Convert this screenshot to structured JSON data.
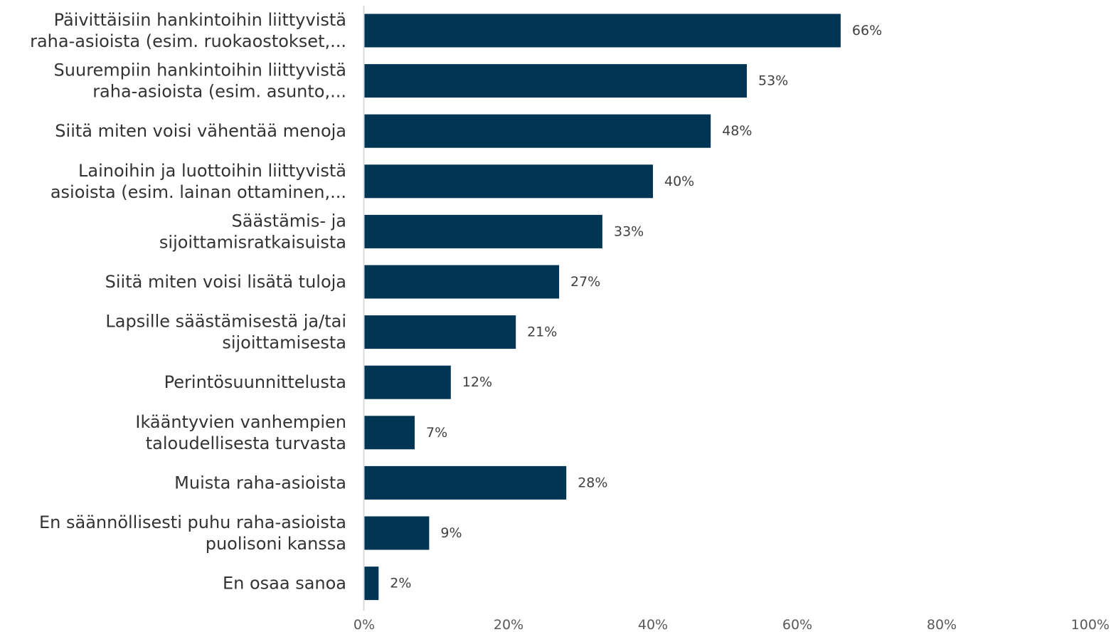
{
  "chart_data": {
    "type": "bar",
    "orientation": "horizontal",
    "title": "",
    "xlabel": "",
    "ylabel": "",
    "categories": [
      [
        "Päivittäisiin hankintoihin liittyvistä",
        "raha-asioista (esim. ruokaostokset,..."
      ],
      [
        "Suurempiin hankintoihin liittyvistä",
        "raha-asioista (esim. asunto,..."
      ],
      [
        "Siitä miten voisi vähentää menoja"
      ],
      [
        "Lainoihin ja luottoihin liittyvistä",
        "asioista (esim. lainan ottaminen,..."
      ],
      [
        "Säästämis- ja",
        "sijoittamisratkaisuista"
      ],
      [
        "Siitä miten voisi lisätä tuloja"
      ],
      [
        "Lapsille säästämisestä ja/tai",
        "sijoittamisesta"
      ],
      [
        "Perintösuunnittelusta"
      ],
      [
        "Ikääntyvien vanhempien",
        "taloudellisesta turvasta"
      ],
      [
        "Muista raha-asioista"
      ],
      [
        "En säännöllisesti puhu raha-asioista",
        "puolisoni kanssa"
      ],
      [
        "En osaa sanoa"
      ]
    ],
    "values": [
      66,
      53,
      48,
      40,
      33,
      27,
      21,
      12,
      7,
      28,
      9,
      2
    ],
    "value_labels": [
      "66%",
      "53%",
      "48%",
      "40%",
      "33%",
      "27%",
      "21%",
      "12%",
      "7%",
      "28%",
      "9%",
      "2%"
    ],
    "xlim": [
      0,
      100
    ],
    "x_ticks": [
      0,
      20,
      40,
      60,
      80,
      100
    ],
    "x_tick_labels": [
      "0%",
      "20%",
      "40%",
      "60%",
      "80%",
      "100%"
    ],
    "grid": false,
    "legend": "none",
    "colors": {
      "bar": "#003653",
      "axis": "#d9d9d9",
      "category_text": "#333333",
      "value_text": "#404040",
      "tick_text": "#595959"
    }
  }
}
